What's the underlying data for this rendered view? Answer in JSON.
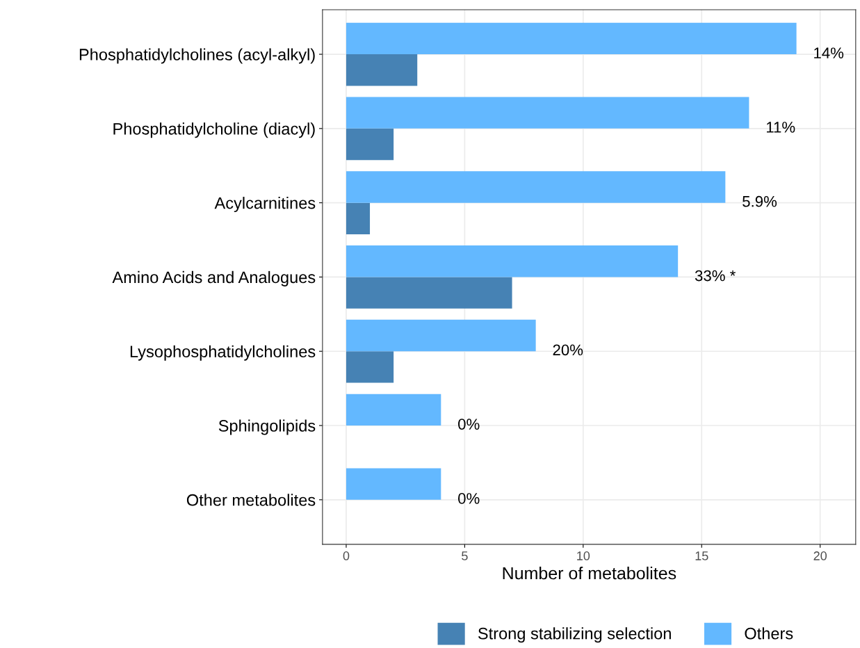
{
  "chart_data": {
    "type": "bar",
    "orientation": "horizontal",
    "xlabel": "Number of metabolites",
    "categories": [
      "Phosphatidylcholines (acyl-alkyl)",
      "Phosphatidylcholine (diacyl)",
      "Acylcarnitines",
      "Amino Acids and Analogues",
      "Lysophosphatidylcholines",
      "Sphingolipids",
      "Other metabolites"
    ],
    "series": [
      {
        "name": "Strong stabilizing selection",
        "color": "#4682b4",
        "values": [
          3,
          2,
          1,
          7,
          2,
          0,
          0
        ]
      },
      {
        "name": "Others",
        "color": "#63b8ff",
        "values": [
          19,
          17,
          16,
          14,
          8,
          4,
          4
        ]
      }
    ],
    "xlim": [
      -1,
      21.5
    ],
    "xticks": [
      0,
      5,
      10,
      15,
      20
    ],
    "grid": true,
    "legend": "bottom",
    "annotations": [
      "14%",
      "11%",
      "5.9%",
      "33% *",
      "20%",
      "0%",
      "0%"
    ]
  }
}
